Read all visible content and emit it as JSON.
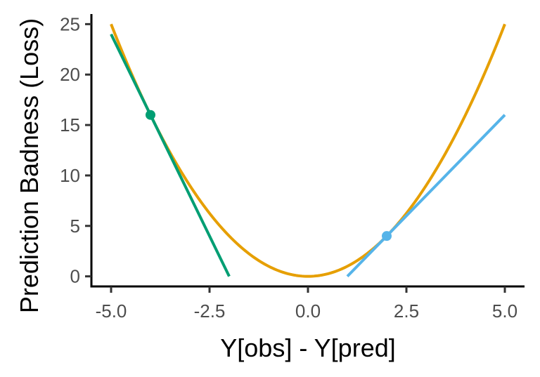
{
  "chart_data": {
    "type": "line",
    "title": "",
    "xlabel": "Y[obs] - Y[pred]",
    "ylabel": "Prediction Badness (Loss)",
    "xlim": [
      -5.5,
      5.5
    ],
    "ylim": [
      -1,
      26
    ],
    "x_ticks": [
      -5.0,
      -2.5,
      0.0,
      2.5,
      5.0
    ],
    "x_tick_labels": [
      "-5.0",
      "-2.5",
      "0.0",
      "2.5",
      "5.0"
    ],
    "y_ticks": [
      0,
      5,
      10,
      15,
      20,
      25
    ],
    "y_tick_labels": [
      "0",
      "5",
      "10",
      "15",
      "20",
      "25"
    ],
    "grid": false,
    "series": [
      {
        "kind": "curve",
        "color": "#E69F00",
        "x": [
          -5.0,
          -4.5,
          -4.0,
          -3.5,
          -3.0,
          -2.5,
          -2.0,
          -1.5,
          -1.0,
          -0.5,
          0.0,
          0.5,
          1.0,
          1.5,
          2.0,
          2.5,
          3.0,
          3.5,
          4.0,
          4.5,
          5.0
        ],
        "y": [
          25.0,
          20.25,
          16.0,
          12.25,
          9.0,
          6.25,
          4.0,
          2.25,
          1.0,
          0.25,
          0.0,
          0.25,
          1.0,
          2.25,
          4.0,
          6.25,
          9.0,
          12.25,
          16.0,
          20.25,
          25.0
        ]
      },
      {
        "kind": "tangent",
        "color": "#009E73",
        "x": [
          -5.0,
          -2.0
        ],
        "y": [
          24.0,
          0.0
        ]
      },
      {
        "kind": "tangent",
        "color": "#56B4E9",
        "x": [
          1.0,
          5.0
        ],
        "y": [
          0.0,
          16.0
        ]
      }
    ],
    "points": [
      {
        "x": -4.0,
        "y": 16.0,
        "color": "#009E73"
      },
      {
        "x": 2.0,
        "y": 4.0,
        "color": "#56B4E9"
      }
    ]
  }
}
